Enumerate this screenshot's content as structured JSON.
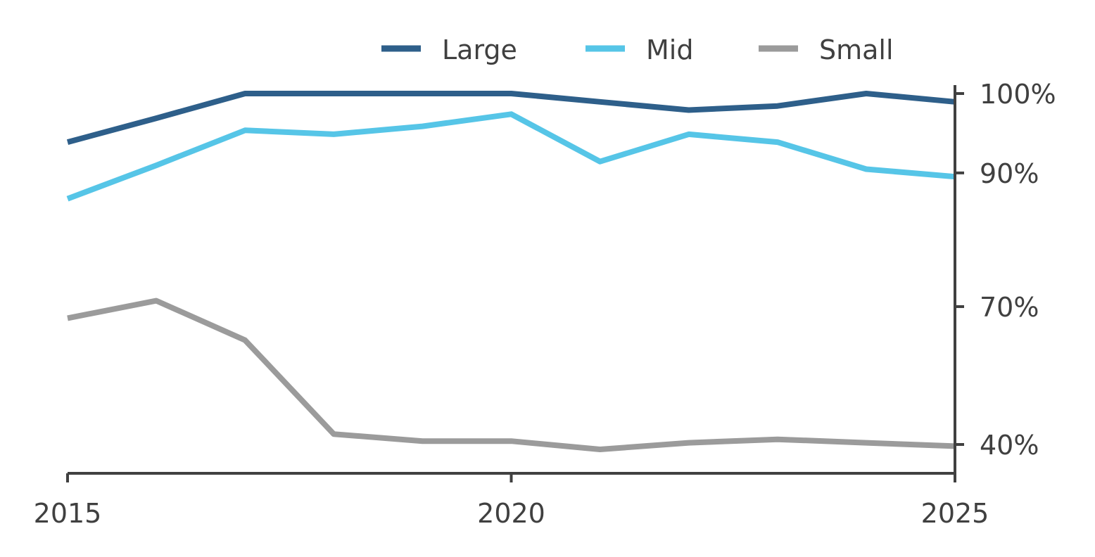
{
  "chart_data": {
    "type": "line",
    "x": [
      2015,
      2016,
      2017,
      2018,
      2019,
      2020,
      2021,
      2022,
      2023,
      2024,
      2025
    ],
    "series": [
      {
        "name": "Large",
        "color": "#2e5f8a",
        "values": [
          94.0,
          97.0,
          100.0,
          100.0,
          100.0,
          100.0,
          99.0,
          98.0,
          98.5,
          100.0,
          99.0
        ]
      },
      {
        "name": "Mid",
        "color": "#56c5e7",
        "values": [
          86.5,
          91.0,
          95.5,
          95.0,
          96.0,
          97.5,
          91.5,
          95.0,
          94.0,
          90.5,
          89.5
        ]
      },
      {
        "name": "Small",
        "color": "#9b9b9b",
        "values": [
          68.0,
          71.0,
          64.0,
          43.0,
          41.0,
          41.0,
          38.5,
          40.5,
          41.5,
          40.5,
          39.5
        ]
      }
    ],
    "xticks": [
      2015,
      2020,
      2025
    ],
    "xtick_labels": [
      "2015",
      "2020",
      "2025"
    ],
    "yticks": [
      40,
      70,
      90,
      100
    ],
    "ytick_labels": [
      "40%",
      "70%",
      "90%",
      "100%"
    ],
    "xlim": [
      2015,
      2025
    ],
    "ylim": [
      36,
      101
    ],
    "y_axis_side": "right",
    "legend_position": "top-right",
    "grid": false,
    "title": "",
    "xlabel": "",
    "ylabel": ""
  }
}
